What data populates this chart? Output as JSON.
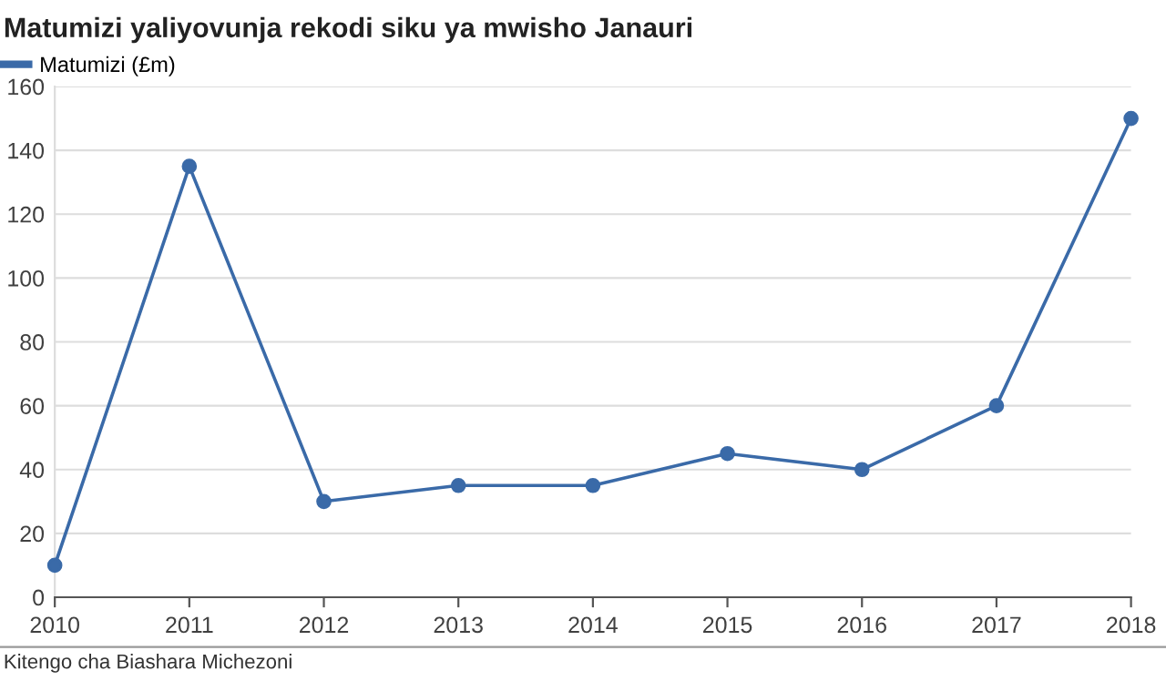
{
  "chart_data": {
    "type": "line",
    "title": "Matumizi yaliyovunja rekodi siku ya mwisho Janauri",
    "x": [
      2010,
      2011,
      2012,
      2013,
      2014,
      2015,
      2016,
      2017,
      2018
    ],
    "series": [
      {
        "name": "Matumizi (£m)",
        "color": "#3a6aa8",
        "values": [
          10,
          135,
          30,
          35,
          35,
          45,
          40,
          60,
          150
        ]
      }
    ],
    "xlim": [
      2010,
      2018
    ],
    "xticks": [
      2010,
      2011,
      2012,
      2013,
      2014,
      2015,
      2016,
      2017,
      2018
    ],
    "ylim": [
      0,
      160
    ],
    "yticks": [
      0,
      20,
      40,
      60,
      80,
      100,
      120,
      140,
      160
    ],
    "grid": "y",
    "legend": "top left",
    "marker": "circle",
    "line_style": "solid",
    "annotations": [
      "Kitengo cha Biashara Michezoni"
    ]
  }
}
